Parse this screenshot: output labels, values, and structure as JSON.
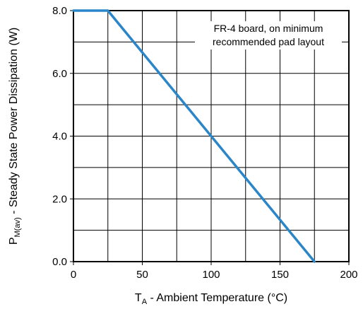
{
  "chart_data": {
    "type": "line",
    "xlabel": {
      "main": "T",
      "sub": "A",
      "rest": " - Ambient Temperature (°C)"
    },
    "ylabel": {
      "main": "P",
      "sub": "M(av)",
      "rest": " - Steady State Power Dissipation (W)"
    },
    "xlim": [
      0,
      200
    ],
    "ylim": [
      0,
      8
    ],
    "x_ticks": [
      0,
      50,
      100,
      150,
      200
    ],
    "x_tick_labels": [
      "0",
      "50",
      "100",
      "150",
      "200"
    ],
    "y_ticks": [
      0,
      2,
      4,
      6,
      8
    ],
    "y_tick_labels": [
      "0.0",
      "2.0",
      "4.0",
      "6.0",
      "8.0"
    ],
    "grid": true,
    "annotation": [
      "FR-4 board, on minimum",
      "recommended pad layout"
    ],
    "series": [
      {
        "color": "#2a86c8",
        "x": [
          0,
          25,
          175
        ],
        "y": [
          8.0,
          8.0,
          0.0
        ]
      }
    ]
  }
}
